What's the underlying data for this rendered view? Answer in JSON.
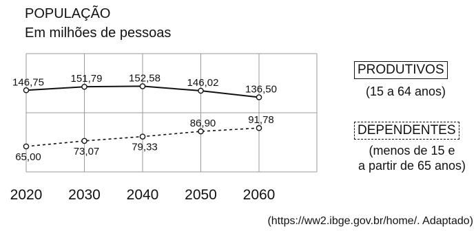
{
  "title": "POPULAÇÃO",
  "subtitle": "Em milhões de pessoas",
  "legend": {
    "produtivos_label": "PRODUTIVOS",
    "produtivos_note": "(15 a 64 anos)",
    "dependentes_label": "DEPENDENTES",
    "dependentes_note_line1": "(menos de 15 e",
    "dependentes_note_line2": "a partir de 65 anos)"
  },
  "source": "(https://ww2.ibge.gov.br/home/. Adaptado)",
  "chart_data": {
    "type": "line",
    "x": [
      "2020",
      "2030",
      "2040",
      "2050",
      "2060"
    ],
    "series": [
      {
        "name": "PRODUTIVOS",
        "style": "solid",
        "values": [
          146.75,
          151.79,
          152.58,
          146.02,
          136.5
        ],
        "labels": [
          "146,75",
          "151,79",
          "152,58",
          "146,02",
          "136,50"
        ]
      },
      {
        "name": "DEPENDENTES",
        "style": "dashed",
        "values": [
          65.0,
          73.07,
          79.33,
          86.9,
          91.78
        ],
        "labels": [
          "65,00",
          "73,07",
          "79,33",
          "86,90",
          "91,78"
        ]
      }
    ],
    "grid": true,
    "legend_position": "right",
    "line_color": "#111111",
    "marker_fill": "#ffffff"
  }
}
